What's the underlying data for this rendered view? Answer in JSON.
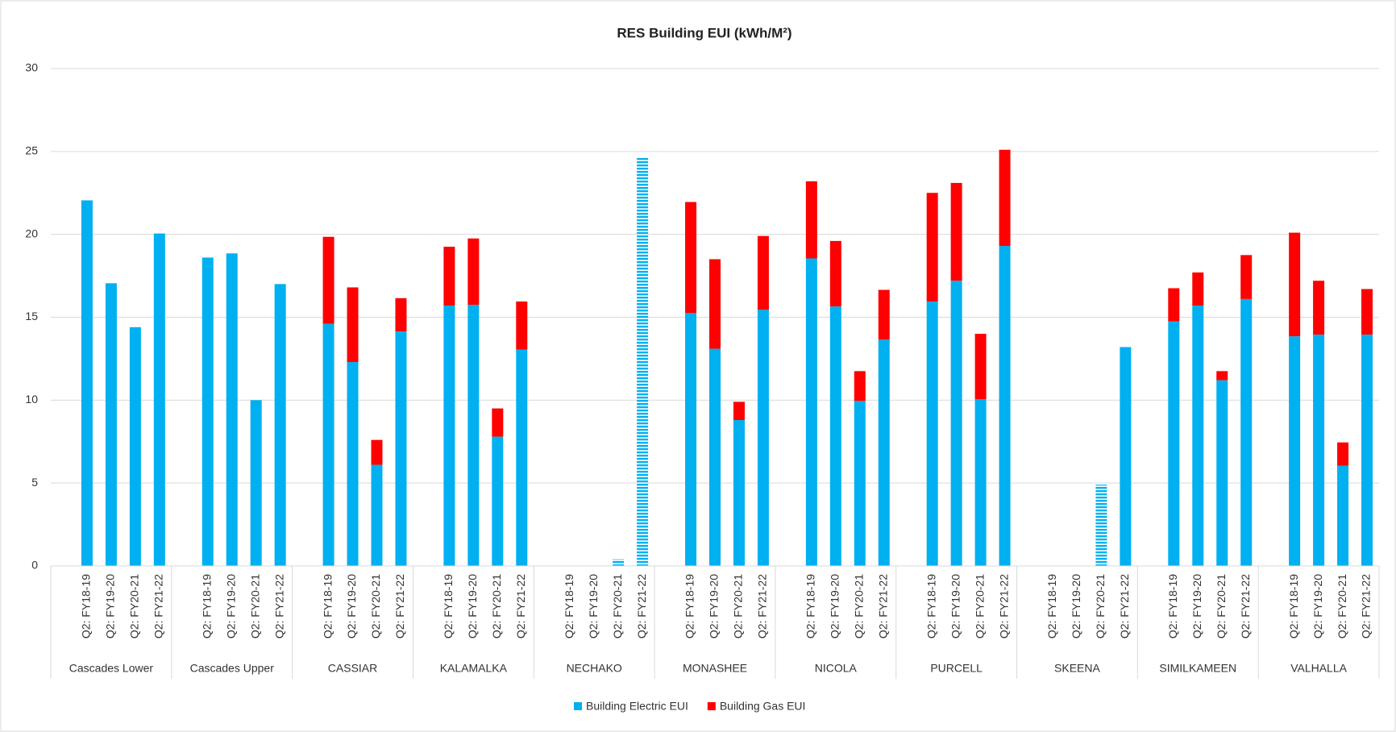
{
  "chart_data": {
    "type": "bar",
    "stacked": true,
    "title": "RES Building EUI (kWh/M²)",
    "groups": [
      "Cascades Lower",
      "Cascades Upper",
      "CASSIAR",
      "KALAMALKA",
      "NECHAKO",
      "MONASHEE",
      "NICOLA",
      "PURCELL",
      "SKEENA",
      "SIMILKAMEEN",
      "VALHALLA"
    ],
    "categories": [
      "Q2: FY18-19",
      "Q2: FY19-20",
      "Q2: FY20-21",
      "Q2: FY21-22",
      "Q2: FY18-19",
      "Q2: FY19-20",
      "Q2: FY20-21",
      "Q2: FY21-22",
      "Q2: FY18-19",
      "Q2: FY19-20",
      "Q2: FY20-21",
      "Q2: FY21-22",
      "Q2: FY18-19",
      "Q2: FY19-20",
      "Q2: FY20-21",
      "Q2: FY21-22",
      "Q2: FY18-19",
      "Q2: FY19-20",
      "Q2: FY20-21",
      "Q2: FY21-22",
      "Q2: FY18-19",
      "Q2: FY19-20",
      "Q2: FY20-21",
      "Q2: FY21-22",
      "Q2: FY18-19",
      "Q2: FY19-20",
      "Q2: FY20-21",
      "Q2: FY21-22",
      "Q2: FY18-19",
      "Q2: FY19-20",
      "Q2: FY20-21",
      "Q2: FY21-22",
      "Q2: FY18-19",
      "Q2: FY19-20",
      "Q2: FY20-21",
      "Q2: FY21-22",
      "Q2: FY18-19",
      "Q2: FY19-20",
      "Q2: FY20-21",
      "Q2: FY21-22",
      "Q2: FY18-19",
      "Q2: FY19-20",
      "Q2: FY20-21",
      "Q2: FY21-22"
    ],
    "series": [
      {
        "name": "Building Electric EUI",
        "color": "#00b0f0",
        "hatched_points": [
          18,
          19,
          34
        ],
        "values": [
          22.05,
          17.05,
          14.4,
          20.05,
          18.6,
          18.85,
          10.0,
          17.0,
          14.6,
          12.3,
          6.1,
          14.15,
          15.7,
          15.75,
          7.8,
          13.05,
          null,
          null,
          0.4,
          24.6,
          15.25,
          13.1,
          8.8,
          15.45,
          18.55,
          15.65,
          9.95,
          13.65,
          15.95,
          17.2,
          10.05,
          19.3,
          null,
          null,
          4.9,
          13.2,
          14.75,
          15.7,
          11.2,
          16.1,
          13.85,
          13.95,
          6.05,
          13.95
        ]
      },
      {
        "name": "Building Gas EUI",
        "color": "#ff0000",
        "values": [
          0,
          0,
          0,
          0,
          0,
          0,
          0,
          0,
          5.25,
          4.5,
          1.5,
          2.0,
          3.55,
          4.0,
          1.7,
          2.9,
          null,
          null,
          0,
          0,
          6.7,
          5.4,
          1.1,
          4.45,
          4.65,
          3.95,
          1.8,
          3.0,
          6.55,
          5.9,
          3.95,
          5.8,
          null,
          null,
          0,
          0,
          2.0,
          2.0,
          0.55,
          2.65,
          6.25,
          3.25,
          1.4,
          2.75
        ]
      }
    ],
    "ylim": [
      0,
      30
    ],
    "yticks": [
      0,
      5,
      10,
      15,
      20,
      25,
      30
    ],
    "grid": true,
    "legend": "bottom"
  }
}
